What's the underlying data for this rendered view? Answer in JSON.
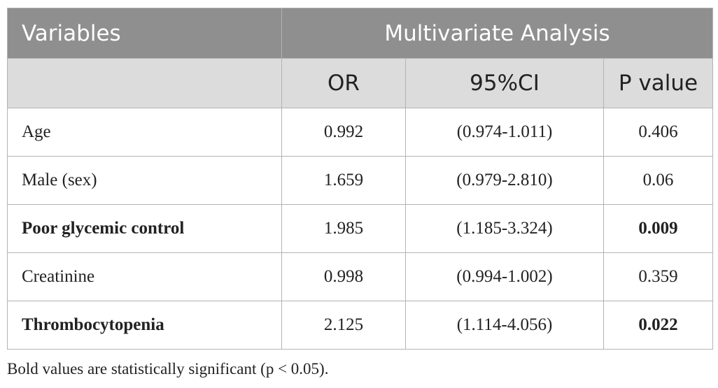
{
  "table": {
    "header_variables": "Variables",
    "header_group": "Multivariate Analysis",
    "sub_headers": [
      "",
      "OR",
      "95%CI",
      "P value"
    ],
    "rows": [
      {
        "variable": "Age",
        "or": "0.992",
        "ci": "(0.974-1.011)",
        "p": "0.406",
        "variable_bold": false,
        "p_bold": false
      },
      {
        "variable": "Male (sex)",
        "or": "1.659",
        "ci": "(0.979-2.810)",
        "p": "0.06",
        "variable_bold": false,
        "p_bold": false
      },
      {
        "variable": "Poor glycemic control",
        "or": "1.985",
        "ci": "(1.185-3.324)",
        "p": "0.009",
        "variable_bold": true,
        "p_bold": true
      },
      {
        "variable": "Creatinine",
        "or": "0.998",
        "ci": "(0.994-1.002)",
        "p": "0.359",
        "variable_bold": false,
        "p_bold": false
      },
      {
        "variable": "Thrombocytopenia",
        "or": "2.125",
        "ci": "(1.114-4.056)",
        "p": "0.022",
        "variable_bold": true,
        "p_bold": true
      }
    ]
  },
  "footnote": "Bold values are statistically significant (p < 0.05)."
}
